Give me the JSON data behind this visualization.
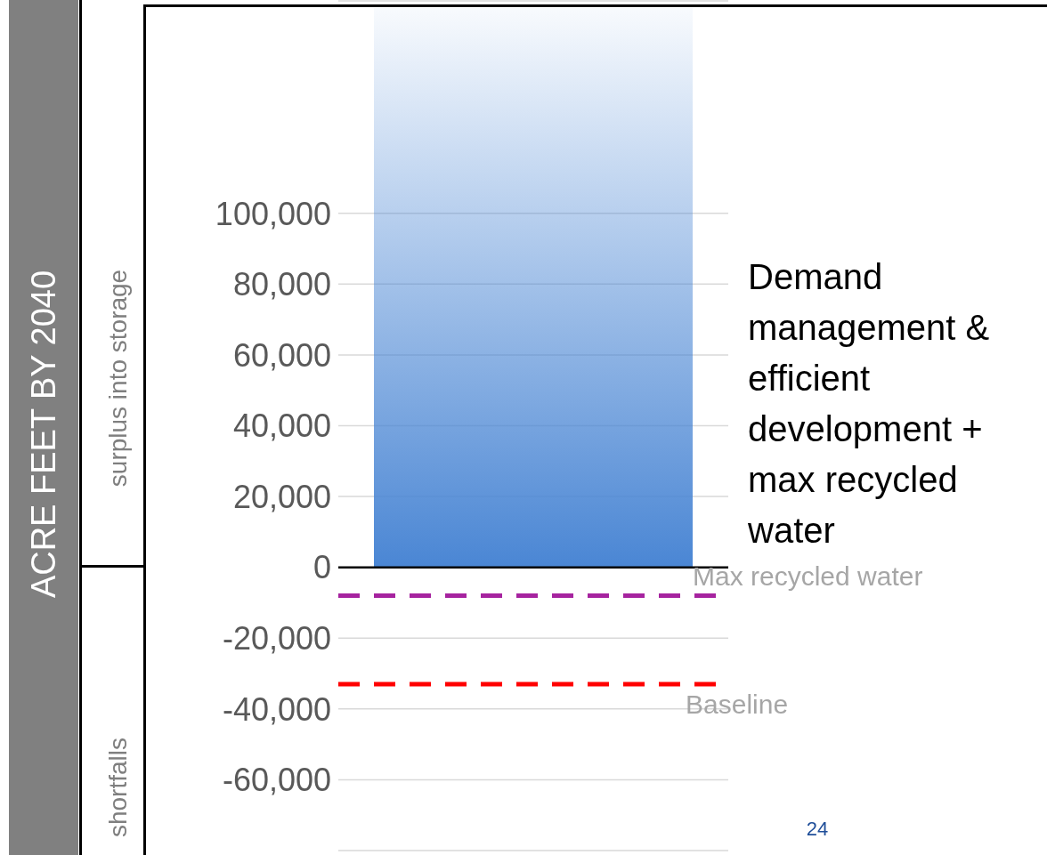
{
  "chart_data": {
    "type": "bar",
    "ylabel": "ACRE FEET BY 2040",
    "categories": [
      null
    ],
    "series": [
      {
        "name": "Demand management & efficient development + max recycled water",
        "color": "#4a86d4",
        "values": [
          158000
        ]
      }
    ],
    "ylim": [
      -80000,
      160000
    ],
    "yticks": [
      {
        "value": -60000,
        "label": "-60,000"
      },
      {
        "value": -40000,
        "label": "-40,000"
      },
      {
        "value": -20000,
        "label": "-20,000"
      },
      0,
      {
        "value": 20000,
        "label": "20,000"
      },
      {
        "value": 40000,
        "label": "40,000"
      },
      {
        "value": 60000,
        "label": "60,000"
      },
      {
        "value": 80000,
        "label": "80,000"
      },
      {
        "value": 100000,
        "label": "100,000"
      }
    ],
    "grid": "y",
    "legend": false,
    "ref_lines": [
      {
        "axis": "y",
        "value": -8000,
        "label": "Max recycled water",
        "color": "#a6239f",
        "line_style": "dashed"
      },
      {
        "axis": "y",
        "value": -33000,
        "label": "Baseline",
        "color": "#ff0000",
        "line_style": "dashed"
      }
    ],
    "annotations": [
      "surplus into storage",
      "shortfalls",
      "24"
    ]
  }
}
